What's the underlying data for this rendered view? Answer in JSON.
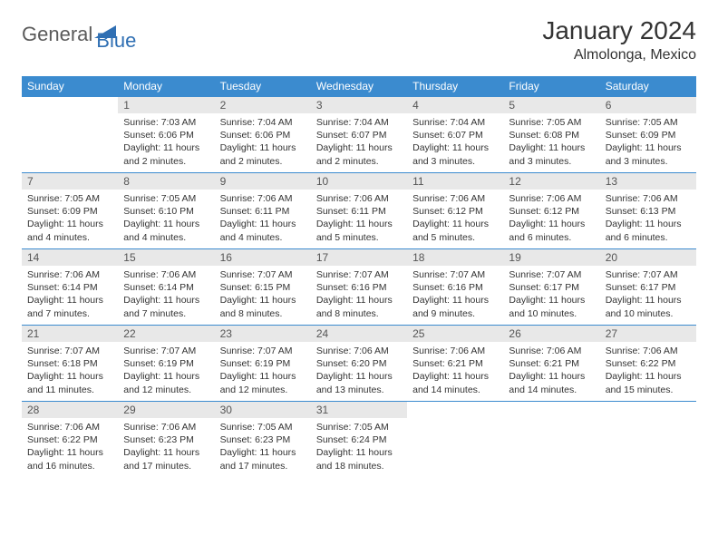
{
  "logo": {
    "wordA": "General",
    "wordB": "Blue",
    "colorA": "#5b5b5b",
    "colorB": "#2f6fb3",
    "triColor": "#2f6fb3"
  },
  "title": {
    "month": "January 2024",
    "location": "Almolonga, Mexico",
    "title_fontsize": 28,
    "location_fontsize": 16
  },
  "calendar": {
    "header_bg": "#3b8bcf",
    "header_fg": "#ffffff",
    "daynum_bg": "#e8e8e8",
    "daynum_fg": "#555555",
    "border_color": "#3b8bcf",
    "text_color": "#333333",
    "background_color": "#ffffff",
    "cell_fontsize": 10.5,
    "header_fontsize": 12,
    "cols": [
      "Sunday",
      "Monday",
      "Tuesday",
      "Wednesday",
      "Thursday",
      "Friday",
      "Saturday"
    ],
    "weeks": [
      [
        {
          "n": "",
          "lines": []
        },
        {
          "n": "1",
          "lines": [
            "Sunrise: 7:03 AM",
            "Sunset: 6:06 PM",
            "Daylight: 11 hours",
            "and 2 minutes."
          ]
        },
        {
          "n": "2",
          "lines": [
            "Sunrise: 7:04 AM",
            "Sunset: 6:06 PM",
            "Daylight: 11 hours",
            "and 2 minutes."
          ]
        },
        {
          "n": "3",
          "lines": [
            "Sunrise: 7:04 AM",
            "Sunset: 6:07 PM",
            "Daylight: 11 hours",
            "and 2 minutes."
          ]
        },
        {
          "n": "4",
          "lines": [
            "Sunrise: 7:04 AM",
            "Sunset: 6:07 PM",
            "Daylight: 11 hours",
            "and 3 minutes."
          ]
        },
        {
          "n": "5",
          "lines": [
            "Sunrise: 7:05 AM",
            "Sunset: 6:08 PM",
            "Daylight: 11 hours",
            "and 3 minutes."
          ]
        },
        {
          "n": "6",
          "lines": [
            "Sunrise: 7:05 AM",
            "Sunset: 6:09 PM",
            "Daylight: 11 hours",
            "and 3 minutes."
          ]
        }
      ],
      [
        {
          "n": "7",
          "lines": [
            "Sunrise: 7:05 AM",
            "Sunset: 6:09 PM",
            "Daylight: 11 hours",
            "and 4 minutes."
          ]
        },
        {
          "n": "8",
          "lines": [
            "Sunrise: 7:05 AM",
            "Sunset: 6:10 PM",
            "Daylight: 11 hours",
            "and 4 minutes."
          ]
        },
        {
          "n": "9",
          "lines": [
            "Sunrise: 7:06 AM",
            "Sunset: 6:11 PM",
            "Daylight: 11 hours",
            "and 4 minutes."
          ]
        },
        {
          "n": "10",
          "lines": [
            "Sunrise: 7:06 AM",
            "Sunset: 6:11 PM",
            "Daylight: 11 hours",
            "and 5 minutes."
          ]
        },
        {
          "n": "11",
          "lines": [
            "Sunrise: 7:06 AM",
            "Sunset: 6:12 PM",
            "Daylight: 11 hours",
            "and 5 minutes."
          ]
        },
        {
          "n": "12",
          "lines": [
            "Sunrise: 7:06 AM",
            "Sunset: 6:12 PM",
            "Daylight: 11 hours",
            "and 6 minutes."
          ]
        },
        {
          "n": "13",
          "lines": [
            "Sunrise: 7:06 AM",
            "Sunset: 6:13 PM",
            "Daylight: 11 hours",
            "and 6 minutes."
          ]
        }
      ],
      [
        {
          "n": "14",
          "lines": [
            "Sunrise: 7:06 AM",
            "Sunset: 6:14 PM",
            "Daylight: 11 hours",
            "and 7 minutes."
          ]
        },
        {
          "n": "15",
          "lines": [
            "Sunrise: 7:06 AM",
            "Sunset: 6:14 PM",
            "Daylight: 11 hours",
            "and 7 minutes."
          ]
        },
        {
          "n": "16",
          "lines": [
            "Sunrise: 7:07 AM",
            "Sunset: 6:15 PM",
            "Daylight: 11 hours",
            "and 8 minutes."
          ]
        },
        {
          "n": "17",
          "lines": [
            "Sunrise: 7:07 AM",
            "Sunset: 6:16 PM",
            "Daylight: 11 hours",
            "and 8 minutes."
          ]
        },
        {
          "n": "18",
          "lines": [
            "Sunrise: 7:07 AM",
            "Sunset: 6:16 PM",
            "Daylight: 11 hours",
            "and 9 minutes."
          ]
        },
        {
          "n": "19",
          "lines": [
            "Sunrise: 7:07 AM",
            "Sunset: 6:17 PM",
            "Daylight: 11 hours",
            "and 10 minutes."
          ]
        },
        {
          "n": "20",
          "lines": [
            "Sunrise: 7:07 AM",
            "Sunset: 6:17 PM",
            "Daylight: 11 hours",
            "and 10 minutes."
          ]
        }
      ],
      [
        {
          "n": "21",
          "lines": [
            "Sunrise: 7:07 AM",
            "Sunset: 6:18 PM",
            "Daylight: 11 hours",
            "and 11 minutes."
          ]
        },
        {
          "n": "22",
          "lines": [
            "Sunrise: 7:07 AM",
            "Sunset: 6:19 PM",
            "Daylight: 11 hours",
            "and 12 minutes."
          ]
        },
        {
          "n": "23",
          "lines": [
            "Sunrise: 7:07 AM",
            "Sunset: 6:19 PM",
            "Daylight: 11 hours",
            "and 12 minutes."
          ]
        },
        {
          "n": "24",
          "lines": [
            "Sunrise: 7:06 AM",
            "Sunset: 6:20 PM",
            "Daylight: 11 hours",
            "and 13 minutes."
          ]
        },
        {
          "n": "25",
          "lines": [
            "Sunrise: 7:06 AM",
            "Sunset: 6:21 PM",
            "Daylight: 11 hours",
            "and 14 minutes."
          ]
        },
        {
          "n": "26",
          "lines": [
            "Sunrise: 7:06 AM",
            "Sunset: 6:21 PM",
            "Daylight: 11 hours",
            "and 14 minutes."
          ]
        },
        {
          "n": "27",
          "lines": [
            "Sunrise: 7:06 AM",
            "Sunset: 6:22 PM",
            "Daylight: 11 hours",
            "and 15 minutes."
          ]
        }
      ],
      [
        {
          "n": "28",
          "lines": [
            "Sunrise: 7:06 AM",
            "Sunset: 6:22 PM",
            "Daylight: 11 hours",
            "and 16 minutes."
          ]
        },
        {
          "n": "29",
          "lines": [
            "Sunrise: 7:06 AM",
            "Sunset: 6:23 PM",
            "Daylight: 11 hours",
            "and 17 minutes."
          ]
        },
        {
          "n": "30",
          "lines": [
            "Sunrise: 7:05 AM",
            "Sunset: 6:23 PM",
            "Daylight: 11 hours",
            "and 17 minutes."
          ]
        },
        {
          "n": "31",
          "lines": [
            "Sunrise: 7:05 AM",
            "Sunset: 6:24 PM",
            "Daylight: 11 hours",
            "and 18 minutes."
          ]
        },
        {
          "n": "",
          "lines": []
        },
        {
          "n": "",
          "lines": []
        },
        {
          "n": "",
          "lines": []
        }
      ]
    ]
  }
}
